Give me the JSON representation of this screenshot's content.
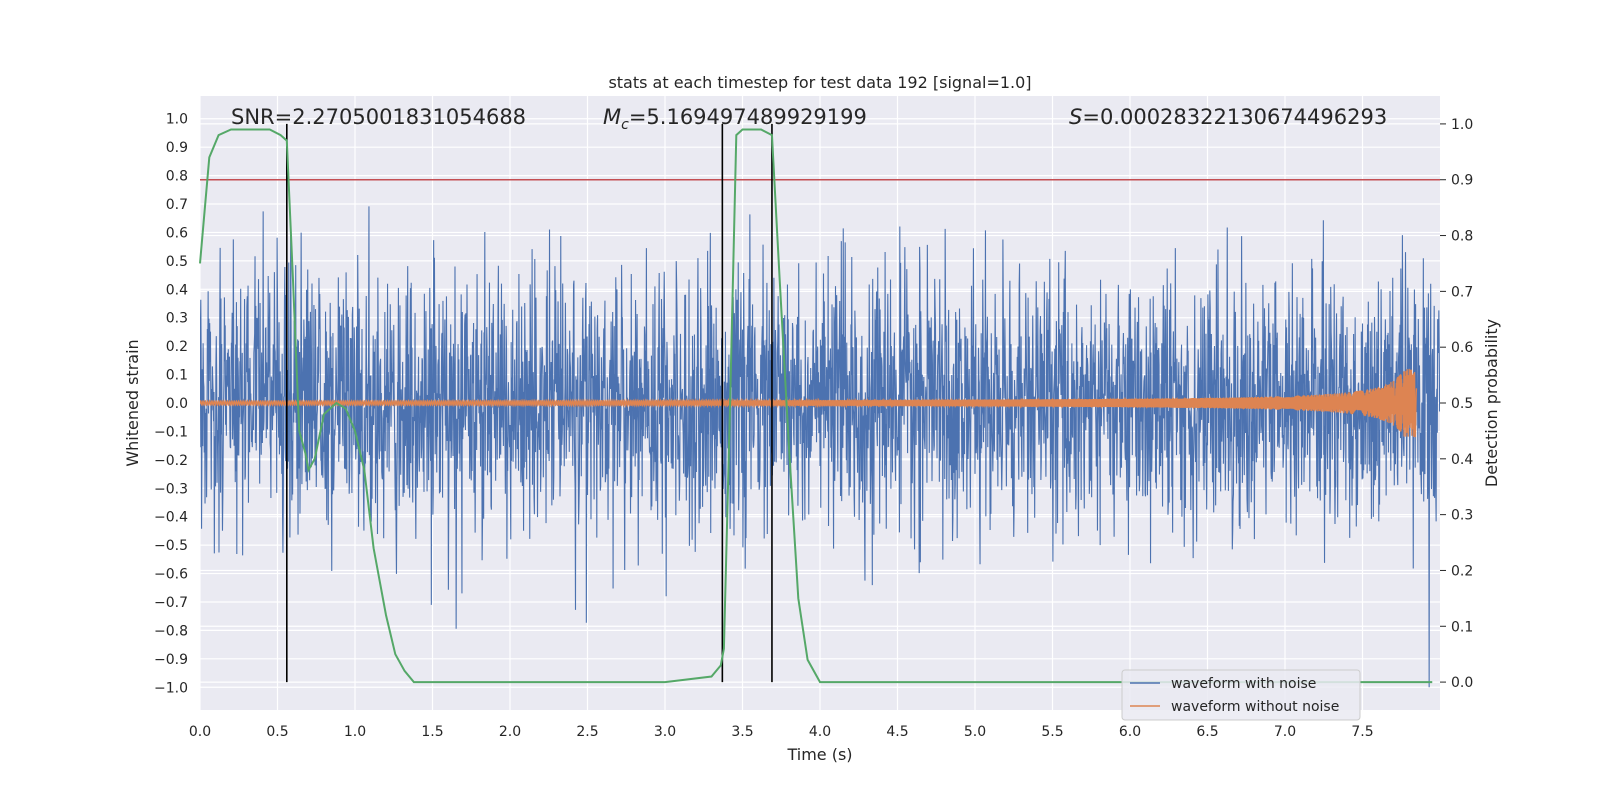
{
  "chart_data": {
    "type": "line",
    "title": "stats at each timestep for test data 192 [signal=1.0]",
    "xlabel": "Time (s)",
    "ylabel_left": "Whitened strain",
    "ylabel_right": "Detection probability",
    "xlim": [
      0.0,
      8.0
    ],
    "ylim_left": [
      -1.08,
      1.08
    ],
    "ylim_right": [
      -0.05,
      1.05
    ],
    "x_ticks": [
      "0.0",
      "0.5",
      "1.0",
      "1.5",
      "2.0",
      "2.5",
      "3.0",
      "3.5",
      "4.0",
      "4.5",
      "5.0",
      "5.5",
      "6.0",
      "6.5",
      "7.0",
      "7.5"
    ],
    "y_ticks_left": [
      "1.0",
      "0.9",
      "0.8",
      "0.7",
      "0.6",
      "0.5",
      "0.4",
      "0.3",
      "0.2",
      "0.1",
      "0.0",
      "−0.1",
      "−0.2",
      "−0.3",
      "−0.4",
      "−0.5",
      "−0.6",
      "−0.7",
      "−0.8",
      "−0.9",
      "−1.0"
    ],
    "y_ticks_right": [
      "1.0",
      "0.9",
      "0.8",
      "0.7",
      "0.6",
      "0.5",
      "0.4",
      "0.3",
      "0.2",
      "0.1",
      "0.0"
    ],
    "grid": true,
    "legend_position": "lower-right",
    "annotations": {
      "snr": "SNR=2.2705001831054688",
      "mc_symbol": "M",
      "mc_sub": "c",
      "mc_value": "=5.169497489929199",
      "s_symbol": "S",
      "s_value": "=0.00028322130674496293"
    },
    "threshold": {
      "value": 0.9,
      "axis": "right",
      "color": "#c44e52"
    },
    "vertical_lines": [
      0.56,
      3.37,
      3.69
    ],
    "series": [
      {
        "name": "waveform with noise",
        "color": "#4c72b0",
        "axis": "left",
        "note_values": "noisy whitened strain, amplitude mostly within ±0.5 with peaks to ±1.0"
      },
      {
        "name": "waveform without noise",
        "color": "#dd8452",
        "axis": "left",
        "chirp_end_time": 7.85,
        "chirp_peak_amplitude": 0.12
      },
      {
        "color": "#55a868",
        "axis": "right",
        "x": [
          0.0,
          0.06,
          0.12,
          0.2,
          0.3,
          0.45,
          0.52,
          0.56,
          0.6,
          0.64,
          0.68,
          0.7,
          0.74,
          0.8,
          0.88,
          0.94,
          1.0,
          1.06,
          1.12,
          1.2,
          1.26,
          1.32,
          1.38,
          1.5,
          2.0,
          2.5,
          3.0,
          3.3,
          3.36,
          3.38,
          3.42,
          3.46,
          3.5,
          3.56,
          3.62,
          3.69,
          3.74,
          3.8,
          3.86,
          3.92,
          4.0,
          5.0,
          6.0,
          7.0,
          7.95
        ],
        "y": [
          0.75,
          0.94,
          0.98,
          0.99,
          0.99,
          0.99,
          0.98,
          0.97,
          0.72,
          0.45,
          0.41,
          0.38,
          0.4,
          0.48,
          0.5,
          0.49,
          0.45,
          0.38,
          0.24,
          0.12,
          0.05,
          0.02,
          0.0,
          0.0,
          0.0,
          0.0,
          0.0,
          0.01,
          0.03,
          0.06,
          0.5,
          0.98,
          0.99,
          0.99,
          0.99,
          0.98,
          0.72,
          0.42,
          0.15,
          0.04,
          0.0,
          0.0,
          0.0,
          0.0,
          0.0
        ]
      }
    ]
  }
}
